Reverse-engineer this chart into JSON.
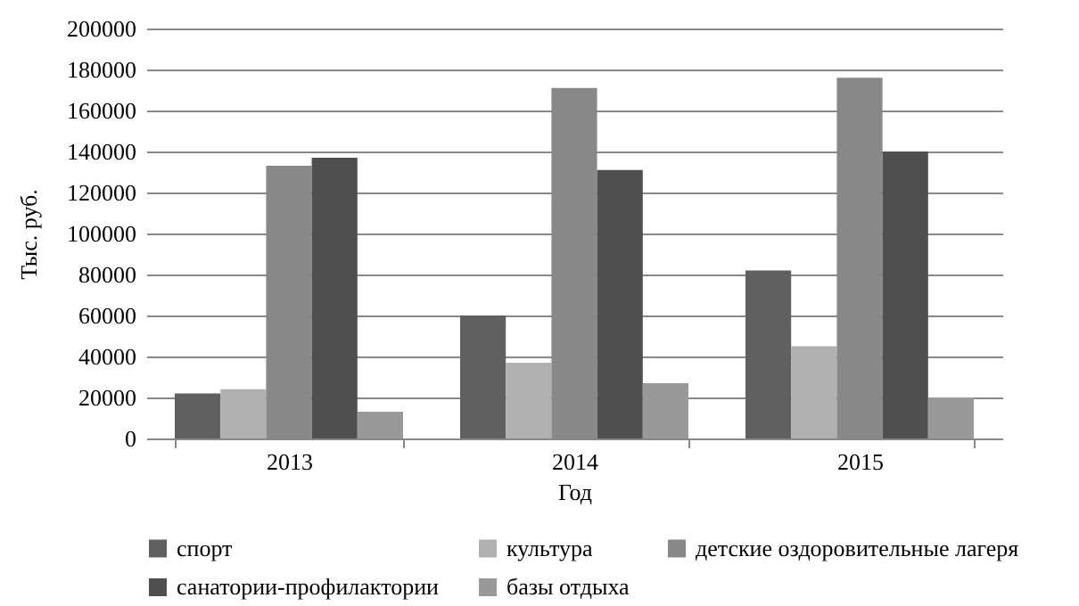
{
  "chart_data": {
    "type": "bar",
    "xlabel": "Год",
    "ylabel": "Тыс. руб.",
    "categories": [
      "2013",
      "2014",
      "2015"
    ],
    "series": [
      {
        "name": "спорт",
        "color": "#606060",
        "values": [
          22000,
          60000,
          82000
        ]
      },
      {
        "name": "культура",
        "color": "#b0b0b0",
        "values": [
          24000,
          37000,
          45000
        ]
      },
      {
        "name": "детские оздоровительные лагеря",
        "color": "#888888",
        "values": [
          133000,
          171000,
          176000
        ]
      },
      {
        "name": "санатории-профилактории",
        "color": "#4f4f4f",
        "values": [
          137000,
          131000,
          140000
        ]
      },
      {
        "name": "базы отдыха",
        "color": "#999999",
        "values": [
          13000,
          27000,
          20000
        ]
      }
    ],
    "ylim": [
      0,
      200000
    ],
    "yticks": [
      0,
      20000,
      40000,
      60000,
      80000,
      100000,
      120000,
      140000,
      160000,
      180000,
      200000
    ],
    "grid": "y",
    "legend": "bottom"
  }
}
